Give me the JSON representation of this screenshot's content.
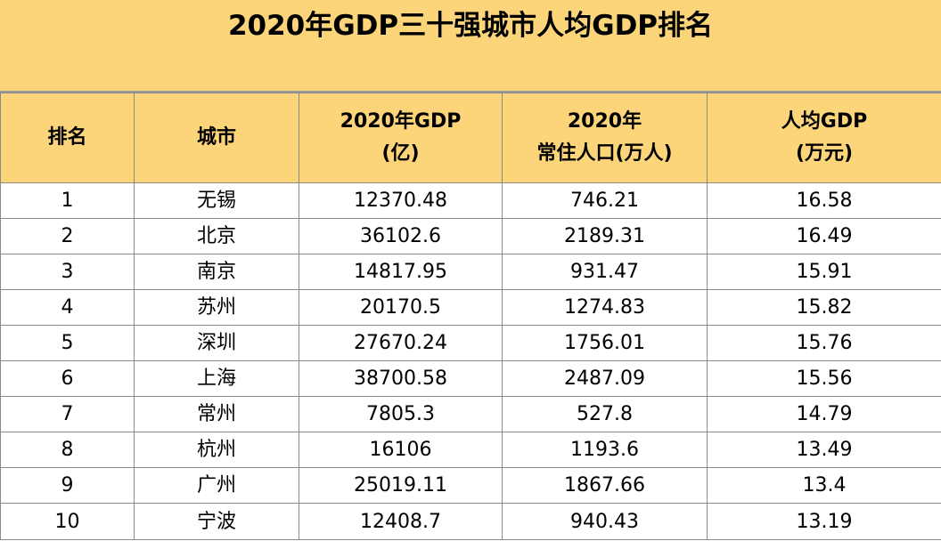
{
  "title": "2020年GDP三十强城市人均GDP排名",
  "headers": [
    [
      "排名"
    ],
    [
      "城市"
    ],
    [
      "2020年GDP",
      "(亿)"
    ],
    [
      "2020年",
      "常住人口(万人)"
    ],
    [
      "人均GDP",
      "(万元)"
    ]
  ],
  "rows": [
    [
      "1",
      "无锡",
      "12370.48",
      "746.21",
      "16.58"
    ],
    [
      "2",
      "北京",
      "36102.6",
      "2189.31",
      "16.49"
    ],
    [
      "3",
      "南京",
      "14817.95",
      "931.47",
      "15.91"
    ],
    [
      "4",
      "苏州",
      "20170.5",
      "1274.83",
      "15.82"
    ],
    [
      "5",
      "深圳",
      "27670.24",
      "1756.01",
      "15.76"
    ],
    [
      "6",
      "上海",
      "38700.58",
      "2487.09",
      "15.56"
    ],
    [
      "7",
      "常州",
      "7805.3",
      "527.8",
      "14.79"
    ],
    [
      "8",
      "杭州",
      "16106",
      "1193.6",
      "13.49"
    ],
    [
      "9",
      "广州",
      "25019.11",
      "1867.66",
      "13.4"
    ],
    [
      "10",
      "宁波",
      "12408.7",
      "940.43",
      "13.19"
    ]
  ]
}
